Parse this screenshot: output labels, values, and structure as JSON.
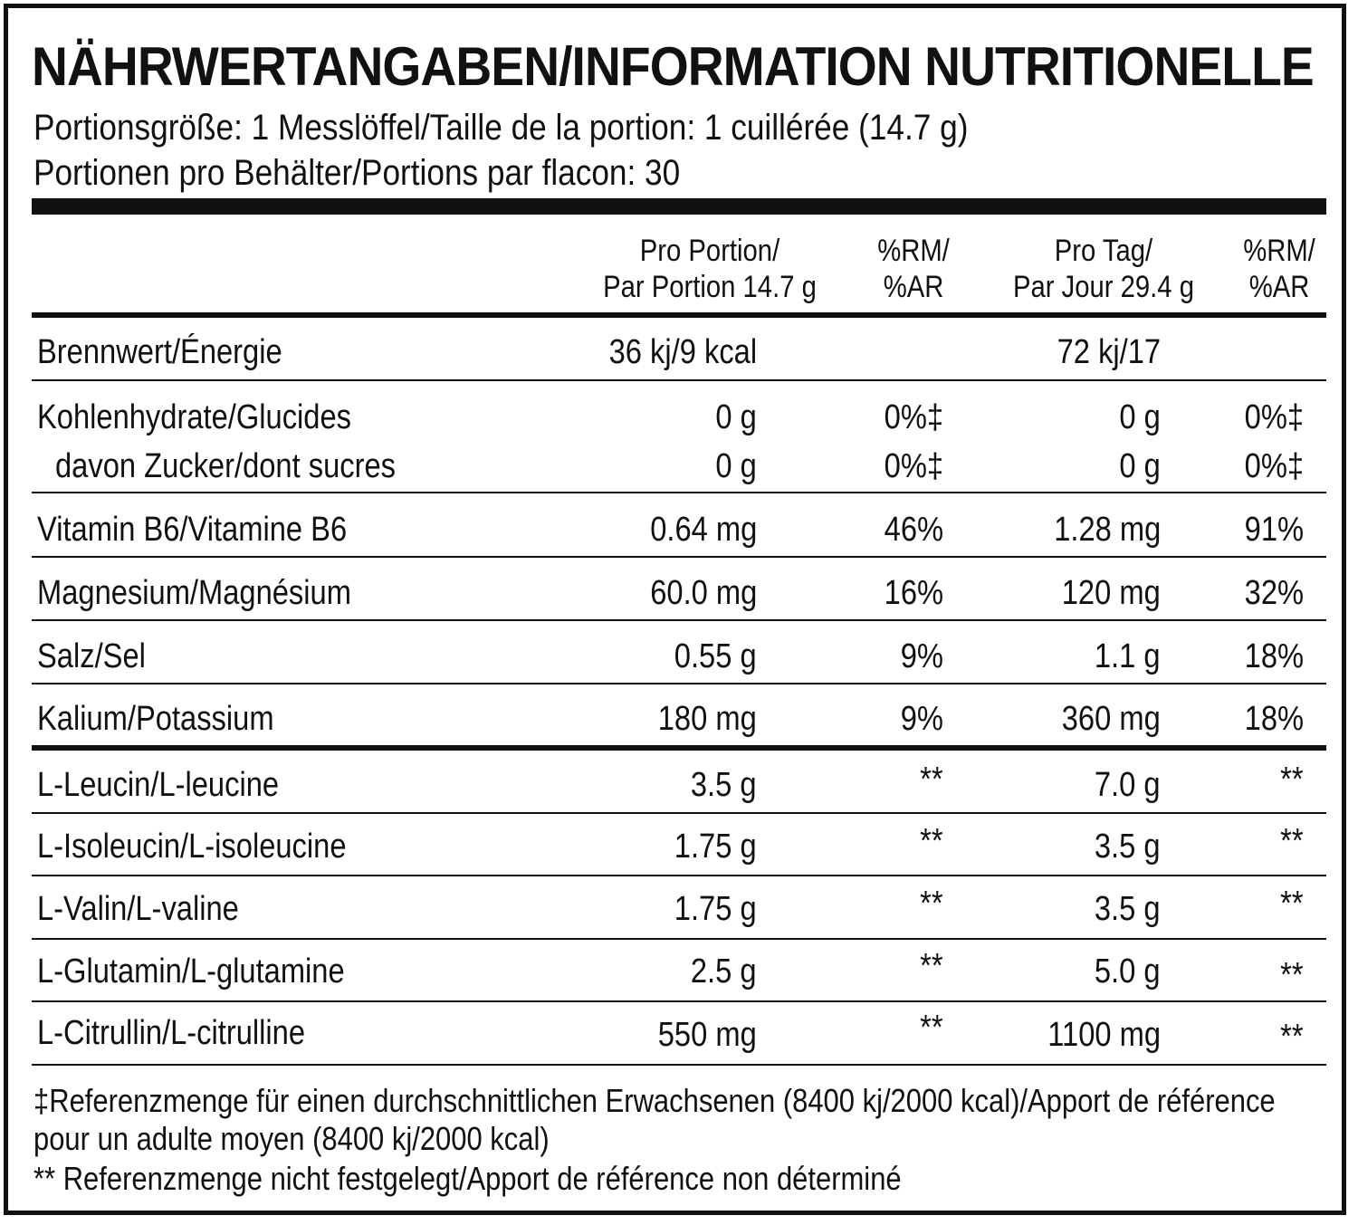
{
  "title": "NÄHRWERTANGABEN/INFORMATION NUTRITIONELLE",
  "serving_size": "Portionsgröße: 1 Messlöffel/Taille de la portion: 1 cuillérée (14.7 g)",
  "servings_per_container": "Portionen pro Behälter/Portions par flacon: 30",
  "header": {
    "per_portion_line1": "Pro Portion/",
    "per_portion_line2": "Par Portion 14.7 g",
    "rm1_line1": "%RM/",
    "rm1_line2": "%AR",
    "per_day_line1": "Pro Tag/",
    "per_day_line2": "Par Jour  29.4 g",
    "rm2_line1": "%RM/",
    "rm2_line2": "%AR"
  },
  "rows": [
    {
      "label": "Brennwert/Énergie",
      "per_portion": "36 kj/9 kcal",
      "rm1": "",
      "per_day": "72 kj/17",
      "rm2": ""
    },
    {
      "label": "Kohlenhydrate/Glucides",
      "per_portion": "0 g",
      "rm1": "0%‡",
      "per_day": "0 g",
      "rm2": "0%‡"
    },
    {
      "label": "davon Zucker/dont sucres",
      "per_portion": "0 g",
      "rm1": "0%‡",
      "per_day": "0 g",
      "rm2": "0%‡"
    },
    {
      "label": "Vitamin B6/Vitamine B6",
      "per_portion": "0.64 mg",
      "rm1": "46%",
      "per_day": "1.28 mg",
      "rm2": "91%"
    },
    {
      "label": "Magnesium/Magnésium",
      "per_portion": "60.0 mg",
      "rm1": "16%",
      "per_day": "120 mg",
      "rm2": "32%"
    },
    {
      "label": "Salz/Sel",
      "per_portion": "0.55 g",
      "rm1": "9%",
      "per_day": "1.1 g",
      "rm2": "18%"
    },
    {
      "label": "Kalium/Potassium",
      "per_portion": "180 mg",
      "rm1": "9%",
      "per_day": "360 mg",
      "rm2": "18%"
    },
    {
      "label": "L-Leucin/L-leucine",
      "per_portion": "3.5 g",
      "rm1": "**",
      "per_day": "7.0 g",
      "rm2": "**"
    },
    {
      "label": "L-Isoleucin/L-isoleucine",
      "per_portion": "1.75 g",
      "rm1": "**",
      "per_day": "3.5 g",
      "rm2": "**"
    },
    {
      "label": "L-Valin/L-valine",
      "per_portion": "1.75 g",
      "rm1": "**",
      "per_day": "3.5 g",
      "rm2": "**"
    },
    {
      "label": "L-Glutamin/L-glutamine",
      "per_portion": "2.5 g",
      "rm1": "**",
      "per_day": "5.0 g",
      "rm2": "**"
    },
    {
      "label": "L-Citrullin/L-citrulline",
      "per_portion": "550 mg",
      "rm1": "**",
      "per_day": "1100 mg",
      "rm2": "**"
    }
  ],
  "footnotes": {
    "ref_line1": "‡Referenzmenge für einen durchschnittlichen Erwachsenen (8400 kj/2000 kcal)/Apport de référence",
    "ref_line2": "pour un adulte moyen (8400 kj/2000 kcal)",
    "not_set": "** Referenzmenge nicht festgelegt/Apport de référence non déterminé"
  }
}
